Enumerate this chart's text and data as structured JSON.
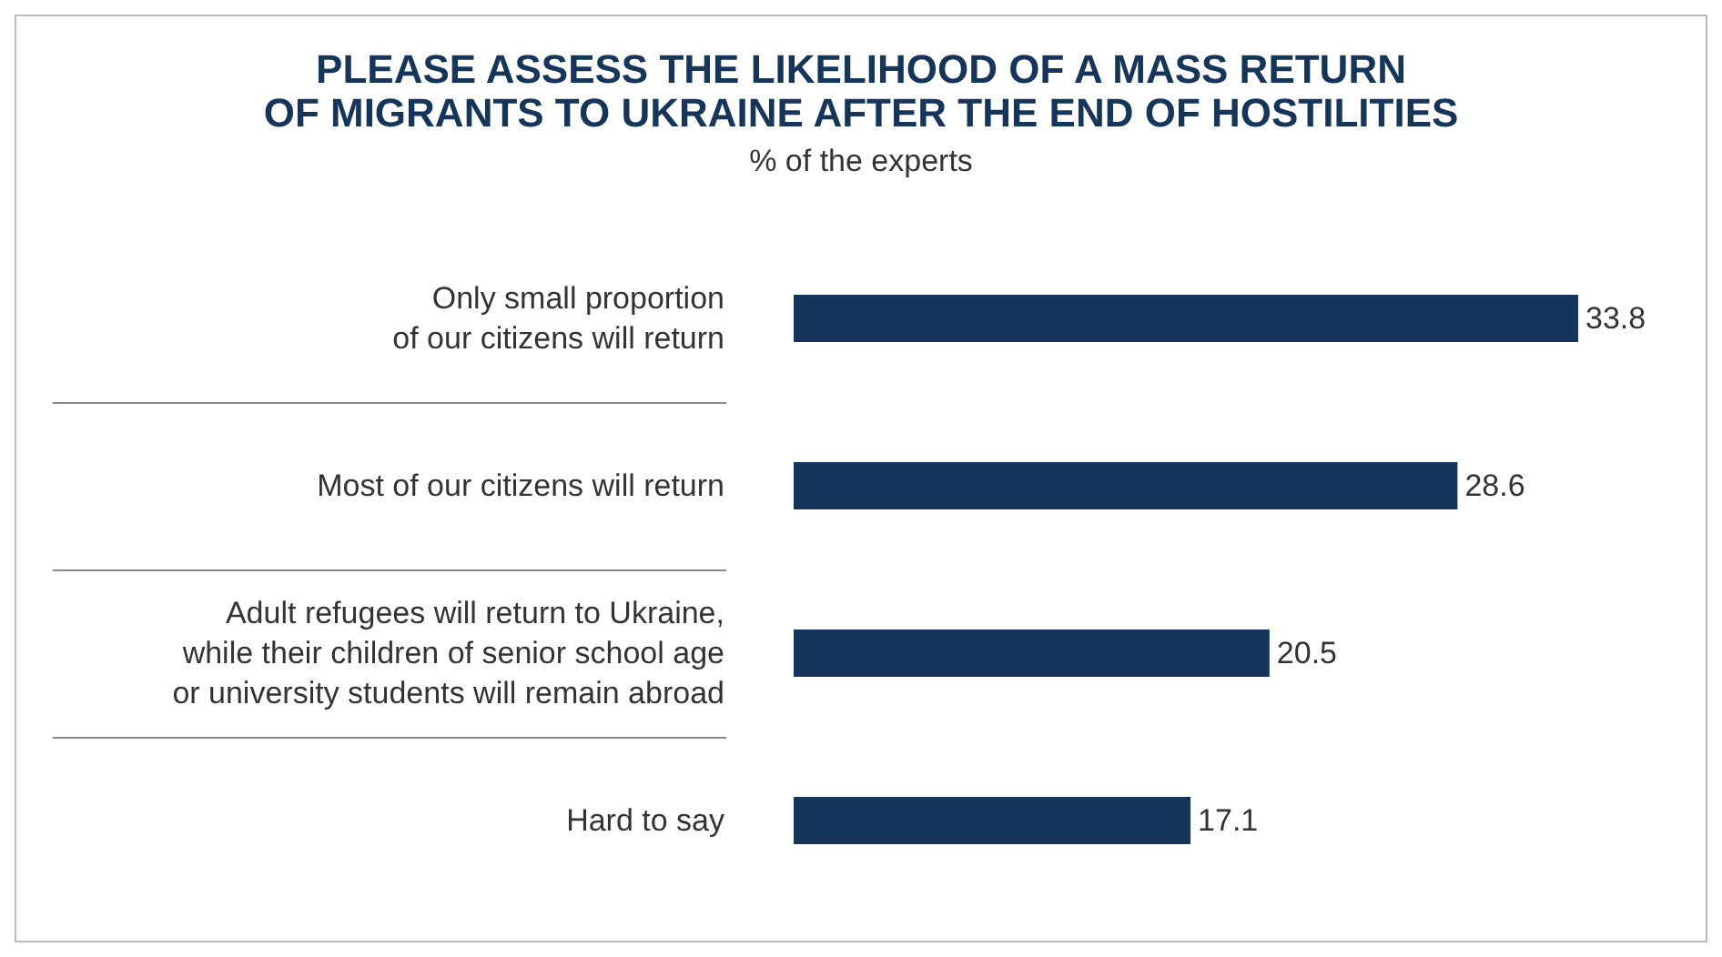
{
  "chart_data": {
    "type": "bar",
    "orientation": "horizontal",
    "title": "PLEASE ASSESS THE LIKELIHOOD OF A MASS RETURN\nOF MIGRANTS TO UKRAINE AFTER THE END OF HOSTILITIES",
    "subtitle": "% of the experts",
    "categories": [
      "Only small proportion\nof our citizens will return",
      "Most of our citizens will return",
      "Adult refugees will return to Ukraine,\nwhile their children of senior school age\nor university students will remain abroad",
      "Hard to say"
    ],
    "values": [
      33.8,
      28.6,
      20.5,
      17.1
    ],
    "color": "#15355a",
    "data_labels": true
  }
}
